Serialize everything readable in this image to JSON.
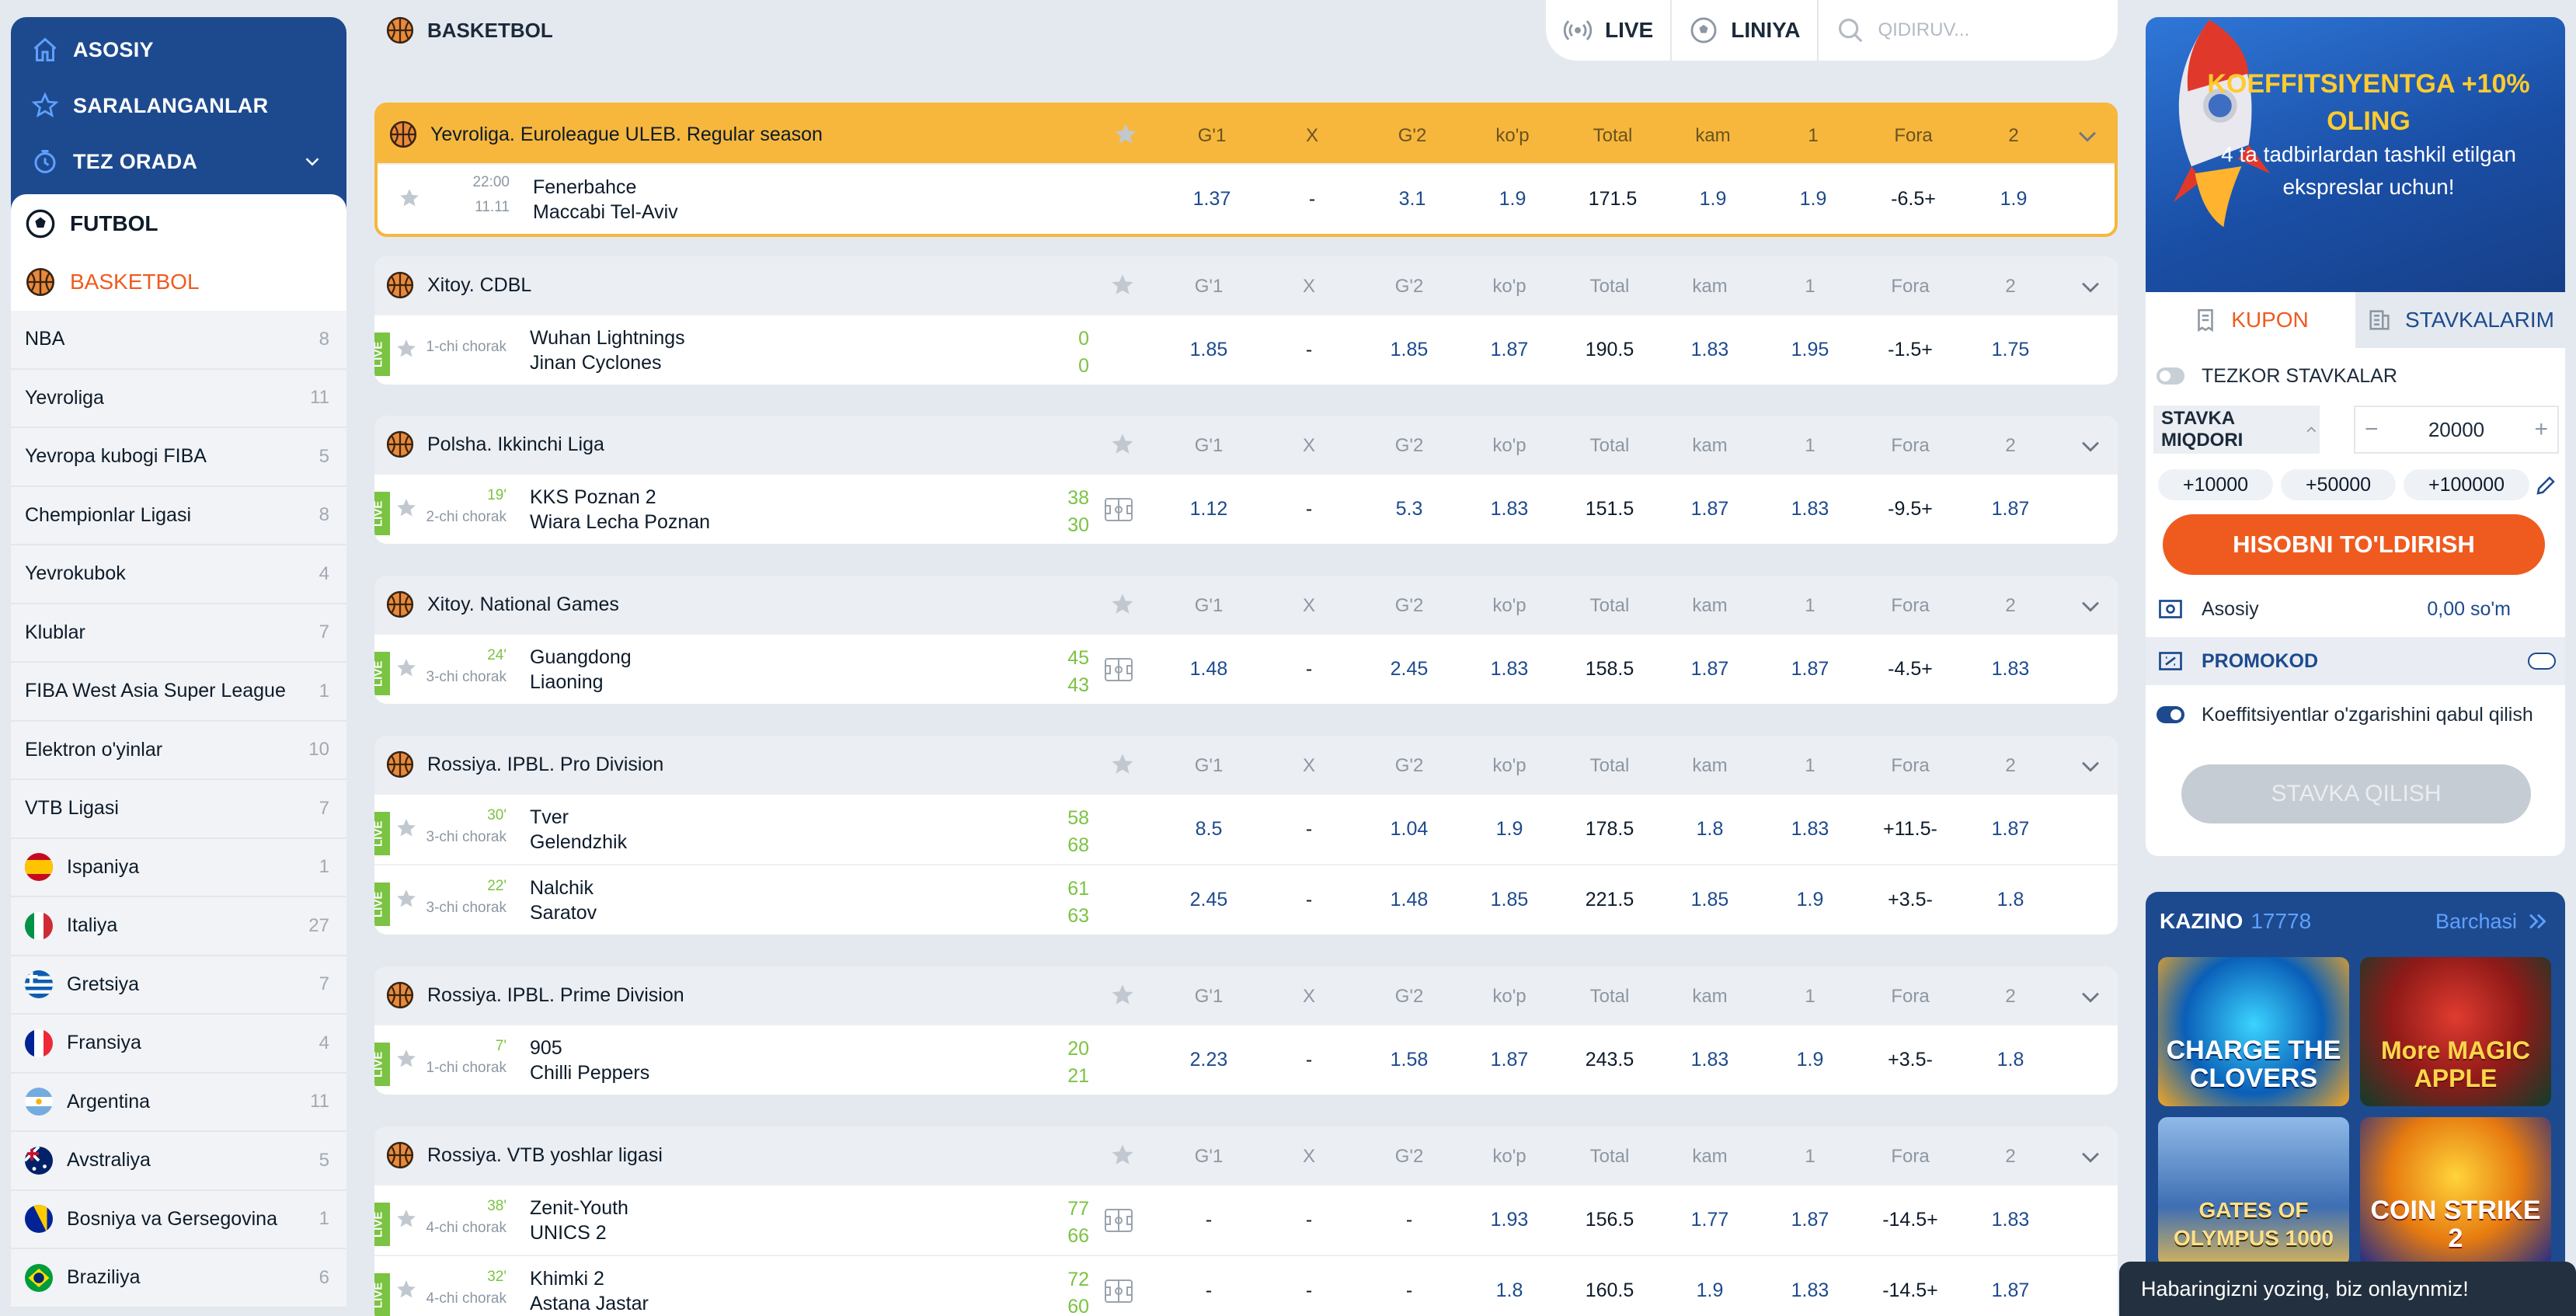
{
  "nav": {
    "main": [
      {
        "label": "ASOSIY",
        "icon": "home-icon"
      },
      {
        "label": "SARALANGANLAR",
        "icon": "star-icon"
      },
      {
        "label": "TEZ ORADA",
        "icon": "clock-icon"
      }
    ],
    "sports": [
      {
        "label": "FUTBOL",
        "icon": "football-icon"
      },
      {
        "label": "BASKETBOL",
        "icon": "basketball-icon"
      }
    ],
    "leagues": [
      {
        "label": "NBA",
        "count": "8"
      },
      {
        "label": "Yevroliga",
        "count": "11"
      },
      {
        "label": "Yevropa kubogi FIBA",
        "count": "5"
      },
      {
        "label": "Chempionlar Ligasi",
        "count": "8"
      },
      {
        "label": "Yevrokubok",
        "count": "4"
      },
      {
        "label": "Klublar",
        "count": "7"
      },
      {
        "label": "FIBA West Asia Super League",
        "count": "1"
      },
      {
        "label": "Elektron o'yinlar",
        "count": "10"
      },
      {
        "label": "VTB Ligasi",
        "count": "7"
      },
      {
        "label": "Ispaniya",
        "count": "1",
        "flag": "es"
      },
      {
        "label": "Italiya",
        "count": "27",
        "flag": "it"
      },
      {
        "label": "Gretsiya",
        "count": "7",
        "flag": "gr"
      },
      {
        "label": "Fransiya",
        "count": "4",
        "flag": "fr"
      },
      {
        "label": "Argentina",
        "count": "11",
        "flag": "ar"
      },
      {
        "label": "Avstraliya",
        "count": "5",
        "flag": "au"
      },
      {
        "label": "Bosniya va Gersegovina",
        "count": "1",
        "flag": "ba"
      },
      {
        "label": "Braziliya",
        "count": "6",
        "flag": "br"
      }
    ]
  },
  "header": {
    "title": "BASKETBOL",
    "live": "LIVE",
    "liniya": "LINIYA",
    "search_placeholder": "QIDIRUV..."
  },
  "columns": [
    "G'1",
    "X",
    "G'2",
    "ko'p",
    "Total",
    "kam",
    "1",
    "Fora",
    "2"
  ],
  "groups": [
    {
      "name": "Yevroliga. Euroleague ULEB. Regular season",
      "highlight": true,
      "events": [
        {
          "live": false,
          "time": "22:00",
          "sub": "11.11",
          "home": "Fenerbahce",
          "away": "Maccabi Tel-Aviv",
          "s1": "",
          "s2": "",
          "field": false,
          "odds": [
            "1.37",
            "-",
            "3.1",
            "1.9",
            "171.5",
            "1.9",
            "1.9",
            "-6.5+",
            "1.9"
          ]
        }
      ]
    },
    {
      "name": "Xitoy. CDBL",
      "highlight": false,
      "events": [
        {
          "live": true,
          "time": "",
          "sub": "1-chi chorak",
          "home": "Wuhan Lightnings",
          "away": "Jinan Cyclones",
          "s1": "0",
          "s2": "0",
          "field": false,
          "odds": [
            "1.85",
            "-",
            "1.85",
            "1.87",
            "190.5",
            "1.83",
            "1.95",
            "-1.5+",
            "1.75"
          ]
        }
      ]
    },
    {
      "name": "Polsha. Ikkinchi Liga",
      "highlight": false,
      "events": [
        {
          "live": true,
          "time": "19'",
          "sub": "2-chi chorak",
          "home": "KKS Poznan 2",
          "away": "Wiara Lecha Poznan",
          "s1": "38",
          "s2": "30",
          "field": true,
          "odds": [
            "1.12",
            "-",
            "5.3",
            "1.83",
            "151.5",
            "1.87",
            "1.83",
            "-9.5+",
            "1.87"
          ]
        }
      ]
    },
    {
      "name": "Xitoy. National Games",
      "highlight": false,
      "events": [
        {
          "live": true,
          "time": "24'",
          "sub": "3-chi chorak",
          "home": "Guangdong",
          "away": "Liaoning",
          "s1": "45",
          "s2": "43",
          "field": true,
          "odds": [
            "1.48",
            "-",
            "2.45",
            "1.83",
            "158.5",
            "1.87",
            "1.87",
            "-4.5+",
            "1.83"
          ]
        }
      ]
    },
    {
      "name": "Rossiya. IPBL. Pro Division",
      "highlight": false,
      "events": [
        {
          "live": true,
          "time": "30'",
          "sub": "3-chi chorak",
          "home": "Tver",
          "away": "Gelendzhik",
          "s1": "58",
          "s2": "68",
          "field": false,
          "odds": [
            "8.5",
            "-",
            "1.04",
            "1.9",
            "178.5",
            "1.8",
            "1.83",
            "+11.5-",
            "1.87"
          ]
        },
        {
          "live": true,
          "time": "22'",
          "sub": "3-chi chorak",
          "home": "Nalchik",
          "away": "Saratov",
          "s1": "61",
          "s2": "63",
          "field": false,
          "odds": [
            "2.45",
            "-",
            "1.48",
            "1.85",
            "221.5",
            "1.85",
            "1.9",
            "+3.5-",
            "1.8"
          ]
        }
      ]
    },
    {
      "name": "Rossiya. IPBL. Prime Division",
      "highlight": false,
      "events": [
        {
          "live": true,
          "time": "7'",
          "sub": "1-chi chorak",
          "home": "905",
          "away": "Chilli Peppers",
          "s1": "20",
          "s2": "21",
          "field": false,
          "odds": [
            "2.23",
            "-",
            "1.58",
            "1.87",
            "243.5",
            "1.83",
            "1.9",
            "+3.5-",
            "1.8"
          ]
        }
      ]
    },
    {
      "name": "Rossiya. VTB yoshlar ligasi",
      "highlight": false,
      "events": [
        {
          "live": true,
          "time": "38'",
          "sub": "4-chi chorak",
          "home": "Zenit-Youth",
          "away": "UNICS 2",
          "s1": "77",
          "s2": "66",
          "field": true,
          "odds": [
            "-",
            "-",
            "-",
            "1.93",
            "156.5",
            "1.77",
            "1.87",
            "-14.5+",
            "1.83"
          ]
        },
        {
          "live": true,
          "time": "32'",
          "sub": "4-chi chorak",
          "home": "Khimki 2",
          "away": "Astana Jastar",
          "s1": "72",
          "s2": "60",
          "field": true,
          "odds": [
            "-",
            "-",
            "-",
            "1.8",
            "160.5",
            "1.9",
            "1.83",
            "-14.5+",
            "1.87"
          ]
        }
      ]
    }
  ],
  "live_label": "LIVE",
  "promo": {
    "line1": "KOEFFITSIYENTGA +10% OLING",
    "line2": "4 ta tadbirlardan tashkil etilgan ekspreslar uchun!"
  },
  "coupon": {
    "tab_kupon": "KUPON",
    "tab_stavkalarim": "STAVKALARIM",
    "quick_bets": "TEZKOR STAVKALAR",
    "stake_label": "STAVKA MIQDORI",
    "stake_value": "20000",
    "quick_amounts": [
      "+10000",
      "+50000",
      "+100000"
    ],
    "fill_button": "HISOBNI TO'LDIRISH",
    "account_label": "Asosiy",
    "account_value": "0,00 so'm",
    "promocode": "PROMOKOD",
    "accept_changes": "Koeffitsiyentlar o'zgarishini qabul qilish",
    "place_button": "STAVKA QILISH"
  },
  "casino": {
    "title": "KAZINO",
    "count": "17778",
    "all": "Barchasi",
    "games": [
      {
        "label": "CHARGE THE CLOVERS"
      },
      {
        "label": "More MAGIC APPLE"
      },
      {
        "label": "GATES OF OLYMPUS 1000"
      },
      {
        "label": "COIN STRIKE 2"
      }
    ]
  },
  "chat": {
    "text": "Habaringizni yozing, biz onlaynmiz!"
  },
  "colors": {
    "brand_blue": "#1d4a8e",
    "accent_orange": "#ef5b1f",
    "live_green": "#7bc342",
    "highlight_yellow": "#f6b73c"
  }
}
